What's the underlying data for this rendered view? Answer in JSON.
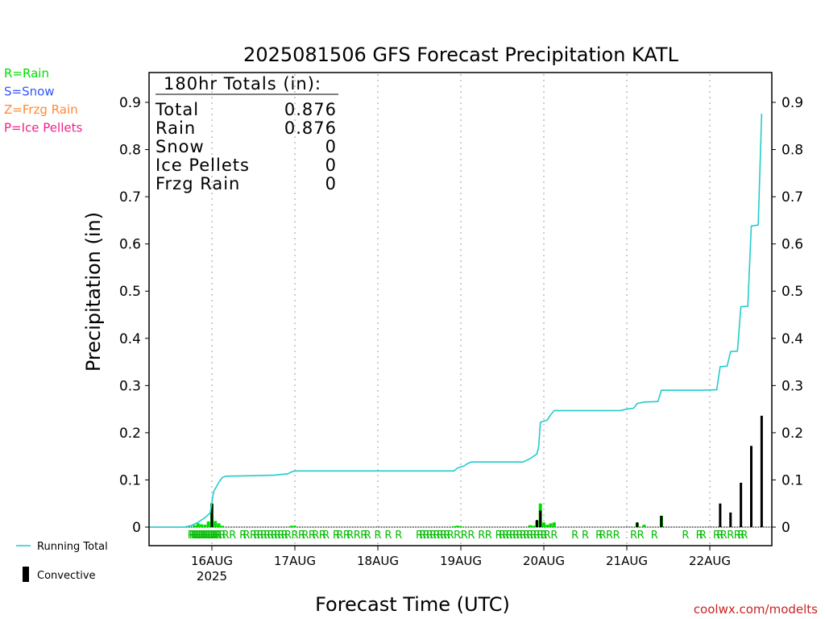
{
  "chart_data": {
    "type": "bar",
    "title": "2025081506 GFS Forecast Precipitation KATL",
    "ylabel": "Precipitation (in)",
    "xlabel": "Forecast Time (UTC)",
    "ylim": [
      0,
      0.96
    ],
    "y_ticks": [
      "0",
      "0.1",
      "0.2",
      "0.3",
      "0.4",
      "0.5",
      "0.6",
      "0.7",
      "0.8",
      "0.9"
    ],
    "x_ticks": [
      {
        "hour": 18,
        "label": "16AUG"
      },
      {
        "hour": 42,
        "label": "17AUG"
      },
      {
        "hour": 66,
        "label": "18AUG"
      },
      {
        "hour": 90,
        "label": "19AUG"
      },
      {
        "hour": 114,
        "label": "20AUG"
      },
      {
        "hour": 138,
        "label": "21AUG"
      },
      {
        "hour": 162,
        "label": "22AUG"
      }
    ],
    "x_sublabel": "2025",
    "grid": "vertical dotted at day boundaries",
    "totals_box": {
      "header": "180hr Totals (in):",
      "rows": [
        {
          "label": "Total",
          "value": "0.876"
        },
        {
          "label": "Rain",
          "value": "0.876"
        },
        {
          "label": "Snow",
          "value": "0"
        },
        {
          "label": "Ice Pellets",
          "value": "0"
        },
        {
          "label": "Frzg Rain",
          "value": "0"
        }
      ]
    },
    "type_legend": [
      {
        "text": "R=Rain",
        "color": "#00dd00"
      },
      {
        "text": "S=Snow",
        "color": "#3355ff"
      },
      {
        "text": "Z=Frzg Rain",
        "color": "#ff8833"
      },
      {
        "text": "P=Ice Pellets",
        "color": "#ee2288"
      }
    ],
    "series_legend": [
      {
        "name": "Running Total",
        "color": "#22cccc",
        "kind": "line"
      },
      {
        "name": "Convective",
        "color": "#000000",
        "kind": "bar"
      }
    ],
    "running_total": [
      [
        0,
        0
      ],
      [
        10,
        0
      ],
      [
        12,
        0.003
      ],
      [
        14,
        0.01
      ],
      [
        16,
        0.02
      ],
      [
        17.5,
        0.03
      ],
      [
        18.5,
        0.075
      ],
      [
        20,
        0.095
      ],
      [
        21,
        0.105
      ],
      [
        22,
        0.108
      ],
      [
        30,
        0.109
      ],
      [
        36,
        0.11
      ],
      [
        40,
        0.113
      ],
      [
        41,
        0.117
      ],
      [
        42,
        0.119
      ],
      [
        88,
        0.119
      ],
      [
        89,
        0.125
      ],
      [
        91,
        0.13
      ],
      [
        92,
        0.135
      ],
      [
        93,
        0.138
      ],
      [
        108,
        0.138
      ],
      [
        110,
        0.145
      ],
      [
        112,
        0.155
      ],
      [
        112.5,
        0.17
      ],
      [
        113,
        0.222
      ],
      [
        115,
        0.227
      ],
      [
        116,
        0.238
      ],
      [
        117,
        0.247
      ],
      [
        136,
        0.247
      ],
      [
        138,
        0.25
      ],
      [
        140,
        0.252
      ],
      [
        141,
        0.262
      ],
      [
        143,
        0.265
      ],
      [
        147,
        0.266
      ],
      [
        148,
        0.29
      ],
      [
        160,
        0.29
      ],
      [
        164,
        0.291
      ],
      [
        165,
        0.34
      ],
      [
        167,
        0.341
      ],
      [
        168,
        0.372
      ],
      [
        170,
        0.373
      ],
      [
        171,
        0.467
      ],
      [
        173,
        0.468
      ],
      [
        174,
        0.638
      ],
      [
        176,
        0.64
      ],
      [
        177,
        0.876
      ]
    ],
    "total_bars": [
      [
        13,
        0.004
      ],
      [
        14,
        0.008
      ],
      [
        15,
        0.006
      ],
      [
        16,
        0.005
      ],
      [
        17,
        0.012
      ],
      [
        18,
        0.05
      ],
      [
        19,
        0.013
      ],
      [
        20,
        0.008
      ],
      [
        21,
        0.003
      ],
      [
        41,
        0.003
      ],
      [
        42,
        0.003
      ],
      [
        88,
        0.002
      ],
      [
        89,
        0.003
      ],
      [
        90,
        0.002
      ],
      [
        110,
        0.004
      ],
      [
        111,
        0.003
      ],
      [
        112,
        0.013
      ],
      [
        113,
        0.05
      ],
      [
        114,
        0.01
      ],
      [
        115,
        0.005
      ],
      [
        116,
        0.008
      ],
      [
        117,
        0.01
      ],
      [
        141,
        0.009
      ],
      [
        143,
        0.005
      ],
      [
        148,
        0.024
      ]
    ],
    "convective_bars": [
      [
        18,
        0.05
      ],
      [
        112,
        0.015
      ],
      [
        113,
        0.035
      ],
      [
        141,
        0.01
      ],
      [
        148,
        0.024
      ],
      [
        165,
        0.05
      ],
      [
        168,
        0.031
      ],
      [
        171,
        0.094
      ],
      [
        174,
        0.172
      ],
      [
        177,
        0.236
      ]
    ],
    "precip_type_marker": "R",
    "precip_type_hours": [
      12,
      12.5,
      13,
      13.5,
      14,
      14.5,
      15,
      15.5,
      16,
      16.5,
      17,
      17.5,
      18,
      18.5,
      19,
      19.5,
      20,
      21,
      22,
      24,
      27,
      28,
      30,
      31,
      32,
      33,
      34,
      35,
      36,
      37,
      38,
      39,
      40,
      42,
      44,
      45,
      47,
      48,
      50,
      51,
      54,
      55,
      57,
      58,
      60,
      62,
      63,
      66,
      69,
      72,
      78,
      79,
      80,
      81,
      82,
      83,
      84,
      85,
      86,
      87,
      89,
      91,
      93,
      96,
      98,
      101,
      102,
      103,
      104,
      105,
      106,
      107,
      108,
      109,
      110,
      111,
      112,
      113,
      114,
      115,
      117,
      123,
      126,
      130,
      131,
      133,
      135,
      140,
      142,
      146,
      155,
      159,
      160,
      164,
      165,
      166,
      168,
      170,
      171,
      172
    ],
    "x_hour_range": [
      0,
      180
    ]
  },
  "credit": "coolwx.com/modelts"
}
